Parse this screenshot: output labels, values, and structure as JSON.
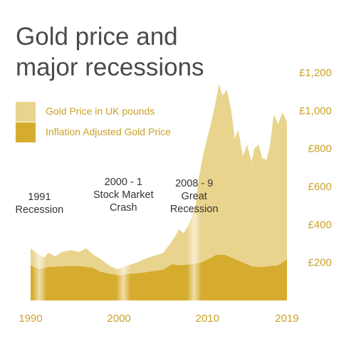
{
  "chart_data": {
    "type": "area",
    "title_lines": [
      "Gold price and",
      "major recessions"
    ],
    "colors": {
      "price": "#e9d48e",
      "inflation": "#d6ac2e",
      "title": "#4a4a4a",
      "label": "#c9a227",
      "annotation": "#333333"
    },
    "x_ticks": [
      "1990",
      "2000",
      "2010",
      "2019"
    ],
    "y_ticks": [
      "£200",
      "£400",
      "£600",
      "£800",
      "£1,000",
      "£1,200"
    ],
    "xlim": [
      1990,
      2019
    ],
    "ylim": [
      0,
      1200
    ],
    "legend_position": "top-left",
    "grid": false,
    "series": [
      {
        "name": "Gold Price in UK pounds",
        "x": [
          1990,
          1990.8,
          1991.5,
          1992,
          1992.8,
          1993.5,
          1994.5,
          1995.5,
          1996.3,
          1997,
          1998,
          1999,
          1999.8,
          2001,
          2002,
          2003,
          2004,
          2005,
          2005.8,
          2006.3,
          2006.8,
          2007.3,
          2007.8,
          2008.3,
          2008.7,
          2009,
          2009.5,
          2010,
          2010.5,
          2011,
          2011.3,
          2011.7,
          2012.2,
          2012.7,
          2013.1,
          2013.5,
          2014,
          2014.5,
          2015,
          2015.3,
          2015.8,
          2016.2,
          2016.7,
          2017.1,
          2017.5,
          2018,
          2018.5,
          2019
        ],
        "values": [
          275,
          245,
          225,
          250,
          232,
          255,
          265,
          255,
          275,
          245,
          215,
          180,
          165,
          185,
          200,
          220,
          235,
          250,
          300,
          335,
          375,
          355,
          390,
          445,
          510,
          640,
          760,
          860,
          950,
          1060,
          1140,
          1080,
          1110,
          1000,
          850,
          900,
          760,
          820,
          730,
          800,
          820,
          750,
          740,
          820,
          980,
          930,
          990,
          940
        ]
      },
      {
        "name": "Inflation Adjusted Gold Price",
        "x": [
          1990,
          1991,
          1992,
          1993,
          1994,
          1995,
          1996,
          1997,
          1998,
          1999,
          2000,
          2001,
          2002,
          2003,
          2004,
          2005,
          2006,
          2007,
          2008,
          2009,
          2010,
          2011,
          2012,
          2013,
          2014,
          2015,
          2016,
          2017,
          2018,
          2019
        ],
        "values": [
          185,
          165,
          175,
          178,
          180,
          182,
          178,
          172,
          150,
          140,
          132,
          140,
          142,
          148,
          155,
          162,
          190,
          185,
          190,
          195,
          215,
          240,
          240,
          220,
          200,
          180,
          175,
          180,
          185,
          215
        ]
      }
    ],
    "annotations": [
      {
        "lines": [
          "1991",
          "Recession"
        ],
        "x": 1991
      },
      {
        "lines": [
          "2000 - 1",
          "Stock Market",
          "Crash"
        ],
        "x": 2000.5
      },
      {
        "lines": [
          "2008 - 9",
          "Great",
          "Recession"
        ],
        "x": 2008.5
      }
    ]
  }
}
